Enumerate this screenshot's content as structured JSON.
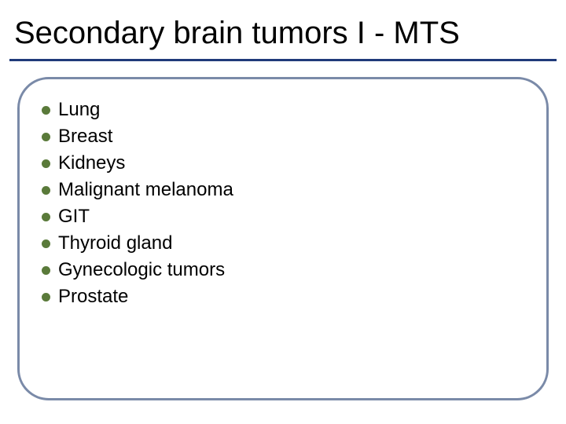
{
  "slide": {
    "title": "Secondary brain tumors I - MTS",
    "title_fontsize": 40,
    "title_color": "#000000",
    "title_underline_color": "#1f3a7a",
    "content_border_color": "#7a8aa8",
    "content_border_radius": 40,
    "background_color": "#ffffff",
    "bullets": {
      "color": "#5a7a3a",
      "size": 11,
      "text_fontsize": 24,
      "text_color": "#000000",
      "items": [
        "Lung",
        "Breast",
        "Kidneys",
        "Malignant melanoma",
        "GIT",
        "Thyroid gland",
        "Gynecologic tumors",
        "Prostate"
      ]
    }
  }
}
